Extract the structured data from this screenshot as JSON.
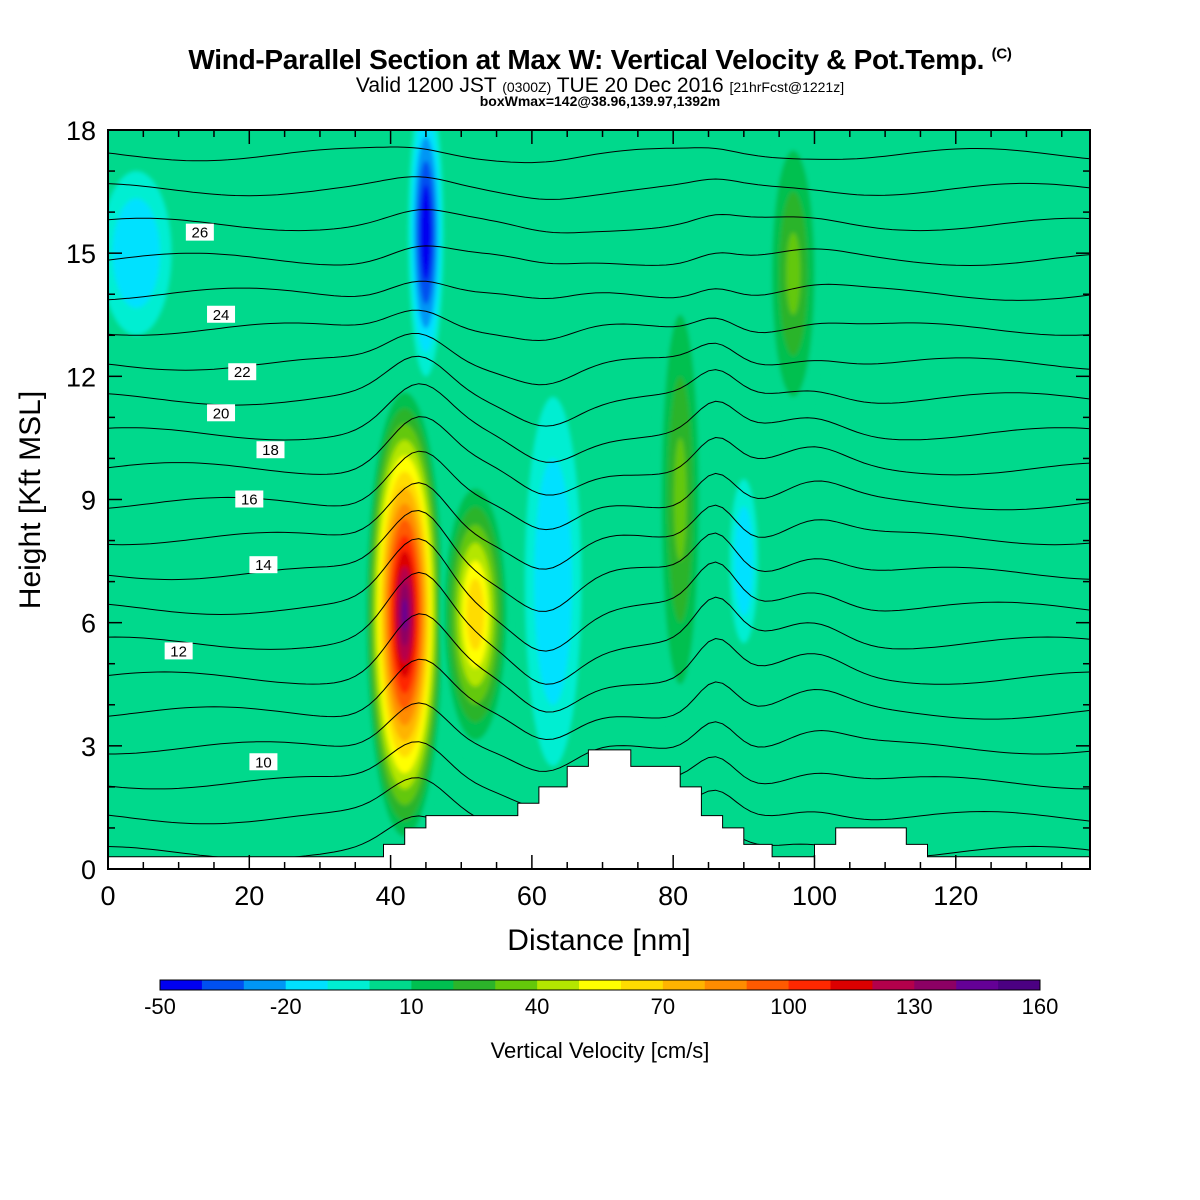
{
  "header": {
    "title": "Wind-Parallel Section at Max W: Vertical Velocity & Pot.Temp.",
    "copyright": "(C)",
    "valid_prefix": "Valid 1200 JST",
    "valid_zulu": "(0300Z)",
    "valid_date": "TUE 20 Dec 2016",
    "forecast": "[21hrFcst@1221z]",
    "boxinfo": "boxWmax=142@38.96,139.97,1392m"
  },
  "chart_data": {
    "type": "contour",
    "xlabel": "Distance [nm]",
    "ylabel": "Height [Kft MSL]",
    "xlim": [
      0,
      139
    ],
    "ylim": [
      0,
      18
    ],
    "x_ticks": [
      "0",
      "20",
      "40",
      "60",
      "80",
      "100",
      "120"
    ],
    "y_ticks": [
      "0",
      "3",
      "6",
      "9",
      "12",
      "15",
      "18"
    ],
    "x_tick_values": [
      0,
      20,
      40,
      60,
      80,
      100,
      120
    ],
    "y_tick_values": [
      0,
      3,
      6,
      9,
      12,
      15,
      18
    ],
    "terrain_profile": [
      [
        0,
        0.3
      ],
      [
        39,
        0.3
      ],
      [
        39,
        0.6
      ],
      [
        42,
        0.6
      ],
      [
        42,
        1.0
      ],
      [
        45,
        1.0
      ],
      [
        45,
        1.3
      ],
      [
        58,
        1.3
      ],
      [
        58,
        1.6
      ],
      [
        61,
        1.6
      ],
      [
        61,
        2.0
      ],
      [
        65,
        2.0
      ],
      [
        65,
        2.5
      ],
      [
        68,
        2.5
      ],
      [
        68,
        2.9
      ],
      [
        74,
        2.9
      ],
      [
        74,
        2.5
      ],
      [
        81,
        2.5
      ],
      [
        81,
        2.0
      ],
      [
        84,
        2.0
      ],
      [
        84,
        1.3
      ],
      [
        87,
        1.3
      ],
      [
        87,
        1.0
      ],
      [
        90,
        1.0
      ],
      [
        90,
        0.6
      ],
      [
        94,
        0.6
      ],
      [
        94,
        0.3
      ],
      [
        100,
        0.3
      ],
      [
        100,
        0.6
      ],
      [
        103,
        0.6
      ],
      [
        103,
        1.0
      ],
      [
        113,
        1.0
      ],
      [
        113,
        0.6
      ],
      [
        116,
        0.6
      ],
      [
        116,
        0.3
      ],
      [
        139,
        0.3
      ]
    ],
    "colorbar": {
      "title": "Vertical Velocity [cm/s]",
      "min": -50,
      "max": 160,
      "step": 10,
      "labels": [
        "-50",
        "-20",
        "10",
        "40",
        "70",
        "100",
        "130",
        "160"
      ],
      "label_values": [
        -50,
        -20,
        10,
        40,
        70,
        100,
        130,
        160
      ],
      "colors": [
        "#0000f0",
        "#0050f0",
        "#0096f5",
        "#00e1ff",
        "#00eed2",
        "#00d98c",
        "#00c050",
        "#2cb42a",
        "#64c80a",
        "#b4e600",
        "#ffff00",
        "#ffdc00",
        "#ffb400",
        "#ff8c00",
        "#ff5a00",
        "#ff2800",
        "#dc0000",
        "#b4004b",
        "#8c0064",
        "#640096",
        "#4b0082"
      ]
    },
    "w_field_features": [
      {
        "x": 42,
        "y": 6.2,
        "rx": 5.8,
        "ry": 5.8,
        "value": 142
      },
      {
        "x": 52,
        "y": 6.2,
        "rx": 5,
        "ry": 3.5,
        "value": 65
      },
      {
        "x": 45,
        "y": 15.5,
        "rx": 2.5,
        "ry": 3.5,
        "value": -45
      },
      {
        "x": 63,
        "y": 7,
        "rx": 4,
        "ry": 4.5,
        "value": -15
      },
      {
        "x": 81,
        "y": 9,
        "rx": 3.5,
        "ry": 6,
        "value": 30
      },
      {
        "x": 97,
        "y": 14.5,
        "rx": 4,
        "ry": 4,
        "value": 30
      },
      {
        "x": 90,
        "y": 7.5,
        "rx": 2,
        "ry": 2,
        "value": -15
      },
      {
        "x": 4,
        "y": 15,
        "rx": 5,
        "ry": 2,
        "value": -15
      }
    ],
    "theta_contours": [
      {
        "value": "10",
        "label_x": 22,
        "label_y": 2.6
      },
      {
        "value": "12",
        "label_x": 10,
        "label_y": 5.3
      },
      {
        "value": "14",
        "label_x": 22,
        "label_y": 7.4
      },
      {
        "value": "16",
        "label_x": 20,
        "label_y": 9.0
      },
      {
        "value": "18",
        "label_x": 23,
        "label_y": 10.2
      },
      {
        "value": "20",
        "label_x": 16,
        "label_y": 11.1
      },
      {
        "value": "22",
        "label_x": 19,
        "label_y": 12.1
      },
      {
        "value": "24",
        "label_x": 16,
        "label_y": 13.5
      },
      {
        "value": "26",
        "label_x": 13,
        "label_y": 15.5
      }
    ]
  }
}
